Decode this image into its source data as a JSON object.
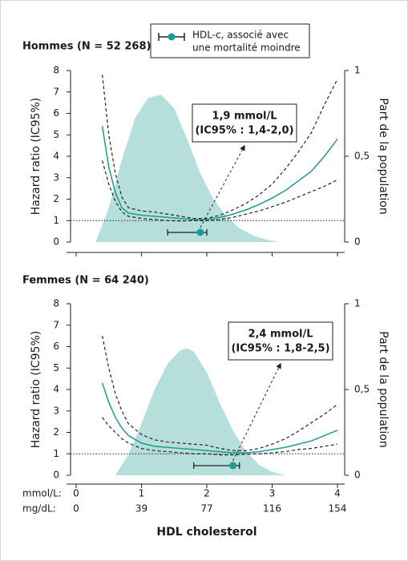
{
  "legend": [
    "HDL-c, associé avec",
    "une mortalité moindre"
  ],
  "x_title": "HDL cholesterol",
  "x_rows": [
    {
      "label": "mmol/L:",
      "ticks": [
        0,
        1,
        2,
        3,
        4
      ]
    },
    {
      "label": "mg/dL:",
      "ticks": [
        {
          "value": 0,
          "label": "0"
        },
        {
          "value": 1,
          "label": "39"
        },
        {
          "value": 2,
          "label": "77"
        },
        {
          "value": 3,
          "label": "116"
        },
        {
          "value": 4,
          "label": "154"
        }
      ]
    }
  ],
  "chart_data": [
    {
      "type": "line",
      "title": "Hommes (N = 52 268)",
      "y_label": "Hazard ratio (IC95%)",
      "y2_label": "Part de la population",
      "annotation": [
        "1,9 mmol/L",
        "(IC95% : 1,4-2,0)"
      ],
      "xlim": [
        0,
        4
      ],
      "xticks": [
        0,
        1,
        2,
        3,
        4
      ],
      "ylim": [
        0,
        8
      ],
      "yticks": [
        0,
        1,
        2,
        3,
        4,
        5,
        6,
        7,
        8
      ],
      "y2lim": [
        0,
        1
      ],
      "y2ticks": [
        0,
        {
          "value": 0.5,
          "label": "0,5"
        },
        1
      ],
      "reference_line": 1,
      "x": [
        0.4,
        0.5,
        0.6,
        0.7,
        0.8,
        1.0,
        1.2,
        1.4,
        1.6,
        1.8,
        2.0,
        2.2,
        2.4,
        2.6,
        2.8,
        3.0,
        3.2,
        3.4,
        3.6,
        3.8,
        4.0
      ],
      "series": [
        {
          "color": "#1a9c95",
          "dashed": false,
          "values": [
            5.4,
            3.5,
            2.3,
            1.6,
            1.35,
            1.25,
            1.2,
            1.15,
            1.1,
            1.05,
            1.05,
            1.15,
            1.3,
            1.5,
            1.75,
            2.05,
            2.4,
            2.85,
            3.3,
            4.0,
            4.8
          ]
        },
        {
          "color": "#222222",
          "dashed": true,
          "values": [
            7.8,
            5.0,
            3.2,
            2.1,
            1.6,
            1.45,
            1.4,
            1.3,
            1.2,
            1.1,
            1.1,
            1.25,
            1.5,
            1.8,
            2.2,
            2.7,
            3.4,
            4.2,
            5.1,
            6.4,
            7.6
          ]
        },
        {
          "color": "#222222",
          "dashed": true,
          "values": [
            3.8,
            2.7,
            1.9,
            1.4,
            1.2,
            1.1,
            1.05,
            1.0,
            0.98,
            1.0,
            1.0,
            1.05,
            1.15,
            1.3,
            1.45,
            1.65,
            1.85,
            2.1,
            2.35,
            2.6,
            2.9
          ]
        }
      ],
      "density": {
        "axis": "y2",
        "color": "#b6dfdb",
        "x": [
          0.3,
          0.5,
          0.7,
          0.9,
          1.1,
          1.3,
          1.5,
          1.7,
          1.9,
          2.1,
          2.3,
          2.5,
          2.7,
          2.9,
          3.1
        ],
        "values": [
          0,
          0.2,
          0.48,
          0.72,
          0.84,
          0.86,
          0.78,
          0.6,
          0.4,
          0.25,
          0.15,
          0.08,
          0.04,
          0.015,
          0
        ]
      },
      "optimum": {
        "x": 1.9,
        "low": 1.4,
        "high": 2.0,
        "color": "#1a9c95"
      }
    },
    {
      "type": "line",
      "title": "Femmes (N = 64 240)",
      "y_label": "Hazard ratio (IC95%)",
      "y2_label": "Part de la population",
      "annotation": [
        "2,4 mmol/L",
        "(IC95% : 1,8-2,5)"
      ],
      "xlim": [
        0,
        4
      ],
      "xticks": [
        0,
        1,
        2,
        3,
        4
      ],
      "ylim": [
        0,
        8
      ],
      "yticks": [
        0,
        1,
        2,
        3,
        4,
        5,
        6,
        7,
        8
      ],
      "y2lim": [
        0,
        1
      ],
      "y2ticks": [
        0,
        {
          "value": 0.5,
          "label": "0,5"
        },
        1
      ],
      "reference_line": 1,
      "x": [
        0.4,
        0.5,
        0.6,
        0.7,
        0.8,
        1.0,
        1.2,
        1.4,
        1.6,
        1.8,
        2.0,
        2.2,
        2.4,
        2.6,
        2.8,
        3.0,
        3.2,
        3.4,
        3.6,
        3.8,
        4.0
      ],
      "series": [
        {
          "color": "#1a9c95",
          "dashed": false,
          "values": [
            4.3,
            3.4,
            2.7,
            2.2,
            1.85,
            1.5,
            1.35,
            1.3,
            1.25,
            1.2,
            1.15,
            1.1,
            1.05,
            1.05,
            1.1,
            1.2,
            1.3,
            1.45,
            1.6,
            1.85,
            2.1
          ]
        },
        {
          "color": "#222222",
          "dashed": true,
          "values": [
            6.5,
            5.0,
            3.8,
            3.0,
            2.4,
            1.9,
            1.65,
            1.55,
            1.5,
            1.45,
            1.4,
            1.25,
            1.15,
            1.15,
            1.25,
            1.45,
            1.7,
            2.05,
            2.45,
            2.85,
            3.3
          ]
        },
        {
          "color": "#222222",
          "dashed": true,
          "values": [
            2.7,
            2.3,
            2.0,
            1.7,
            1.5,
            1.25,
            1.15,
            1.1,
            1.05,
            1.0,
            1.0,
            0.95,
            0.95,
            0.98,
            1.0,
            1.05,
            1.1,
            1.2,
            1.25,
            1.35,
            1.45
          ]
        }
      ],
      "density": {
        "axis": "y2",
        "color": "#b6dfdb",
        "x": [
          0.6,
          0.8,
          1.0,
          1.2,
          1.4,
          1.6,
          1.7,
          1.8,
          2.0,
          2.2,
          2.4,
          2.6,
          2.8,
          3.0,
          3.2
        ],
        "values": [
          0,
          0.12,
          0.3,
          0.5,
          0.65,
          0.73,
          0.74,
          0.72,
          0.6,
          0.42,
          0.26,
          0.14,
          0.06,
          0.02,
          0
        ]
      },
      "optimum": {
        "x": 2.4,
        "low": 1.8,
        "high": 2.5,
        "color": "#1a9c95"
      }
    }
  ]
}
